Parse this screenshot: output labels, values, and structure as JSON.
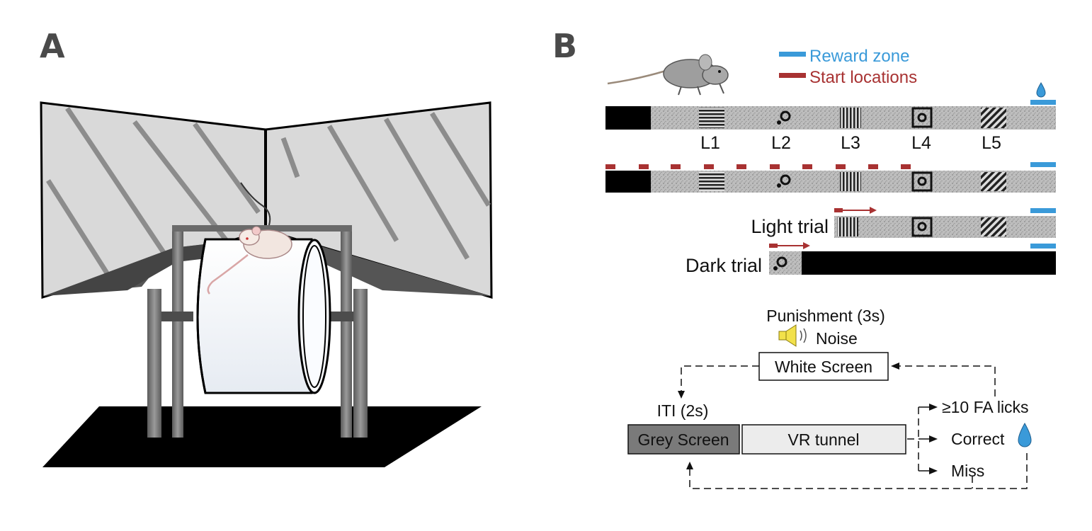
{
  "panels": {
    "a": "A",
    "b": "B"
  },
  "legend": {
    "reward_zone": "Reward zone",
    "start_locations": "Start locations",
    "reward_color": "#3a9ad9",
    "start_color": "#a83232"
  },
  "landmarks": [
    "L1",
    "L2",
    "L3",
    "L4",
    "L5"
  ],
  "trials": {
    "light": "Light trial",
    "dark": "Dark trial"
  },
  "flow": {
    "punishment": "Punishment (3s)",
    "noise": "Noise",
    "white_screen": "White Screen",
    "iti": "ITI (2s)",
    "grey_screen": "Grey Screen",
    "vr_tunnel": "VR tunnel",
    "fa_licks": "≥10 FA licks",
    "correct": "Correct",
    "miss": "Miss"
  },
  "icons": [
    "mouse-illustration",
    "water-drop-icon",
    "speaker-icon"
  ]
}
